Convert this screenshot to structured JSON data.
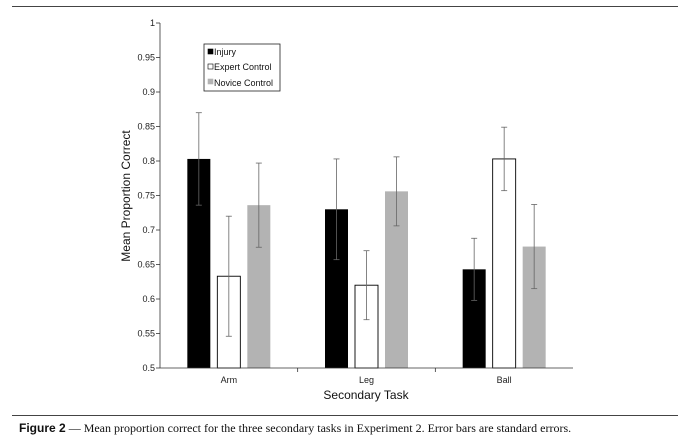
{
  "chart_data": {
    "type": "bar",
    "categories": [
      "Arm",
      "Leg",
      "Ball"
    ],
    "series": [
      {
        "name": "Injury",
        "color": "#000000",
        "values": [
          0.803,
          0.73,
          0.643
        ],
        "errors": [
          0.067,
          0.073,
          0.045
        ]
      },
      {
        "name": "Expert Control",
        "color": "#ffffff",
        "values": [
          0.633,
          0.62,
          0.803
        ],
        "errors": [
          0.087,
          0.05,
          0.046
        ]
      },
      {
        "name": "Novice Control",
        "color": "#b3b3b3",
        "values": [
          0.736,
          0.756,
          0.676
        ],
        "errors": [
          0.061,
          0.05,
          0.061
        ]
      }
    ],
    "ylim": [
      0.5,
      1
    ],
    "yticks": [
      "0.5",
      "0.55",
      "0.6",
      "0.65",
      "0.7",
      "0.75",
      "0.8",
      "0.85",
      "0.9",
      "0.95",
      "1"
    ],
    "xlabel": "Secondary Task",
    "ylabel": "Mean Proportion Correct",
    "legend_position": "top-left",
    "grid": false,
    "error_bars": true
  },
  "caption": {
    "label": "Figure 2",
    "text": " — Mean proportion correct for the three secondary tasks in Experiment 2. Error bars are standard errors."
  }
}
